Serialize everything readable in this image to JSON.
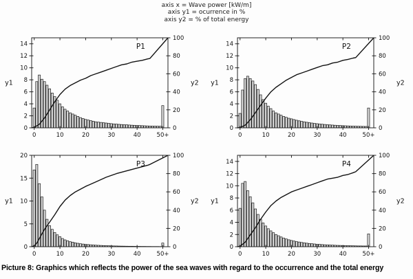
{
  "header": {
    "line1": "axis x = Wave power [kW/m]",
    "line2": "axis y1 = ocurrence in %",
    "line3": "axis y2 = % of total energy"
  },
  "caption": "Picture 8: Graphics which reflects the power of the sea waves with regard to the occurrence and the total energy",
  "colors": {
    "bar_fill": "#d6d6d6",
    "bar_stroke": "#1a1a1a",
    "curve": "#111111",
    "frame": "#222222",
    "text": "#111111"
  },
  "chart_data": [
    {
      "type": "bar+line",
      "title": "P1",
      "xlabel": "Wave power [kW/m]",
      "y1_axis_label": "y1",
      "y2_axis_label": "y2",
      "y1_meaning": "ocurrence in %",
      "y2_meaning": "% of total energy",
      "x_ticks": [
        "0",
        "10",
        "20",
        "30",
        "40",
        "50+"
      ],
      "x_tick_values": [
        0,
        10,
        20,
        30,
        40,
        50
      ],
      "y1_ticks": [
        0,
        2,
        4,
        6,
        8,
        10,
        12,
        14
      ],
      "y1_max": 15,
      "y2_ticks": [
        0,
        20,
        40,
        60,
        80,
        100
      ],
      "y2_max": 100,
      "bars": [
        3.3,
        7.7,
        8.8,
        8.1,
        7.7,
        7.1,
        6.5,
        5.8,
        5.2,
        4.6,
        4.0,
        3.5,
        3.1,
        2.8,
        2.5,
        2.3,
        2.1,
        1.9,
        1.7,
        1.55,
        1.4,
        1.3,
        1.2,
        1.1,
        1.0,
        0.95,
        0.9,
        0.85,
        0.8,
        0.75,
        0.7,
        0.65,
        0.62,
        0.58,
        0.55,
        0.52,
        0.5,
        0.47,
        0.44,
        0.42,
        0.4,
        0.38,
        0.36,
        0.34,
        0.32,
        0.3,
        0.29,
        0.28,
        0.27,
        0.26,
        3.7
      ],
      "curve": [
        [
          -1,
          0
        ],
        [
          0,
          0.5
        ],
        [
          2,
          4
        ],
        [
          4,
          11
        ],
        [
          6,
          20
        ],
        [
          8,
          29
        ],
        [
          10,
          37
        ],
        [
          12,
          43
        ],
        [
          14,
          47
        ],
        [
          16,
          50
        ],
        [
          18,
          53
        ],
        [
          20,
          55
        ],
        [
          22,
          58
        ],
        [
          24,
          60
        ],
        [
          26,
          62
        ],
        [
          28,
          64
        ],
        [
          30,
          66
        ],
        [
          32,
          68
        ],
        [
          34,
          70
        ],
        [
          36,
          71
        ],
        [
          38,
          73
        ],
        [
          40,
          74
        ],
        [
          42,
          75
        ],
        [
          44,
          76.5
        ],
        [
          45,
          77
        ],
        [
          52,
          100
        ]
      ]
    },
    {
      "type": "bar+line",
      "title": "P2",
      "xlabel": "Wave power [kW/m]",
      "y1_axis_label": "y1",
      "y2_axis_label": "y2",
      "y1_meaning": "ocurrence in %",
      "y2_meaning": "% of total energy",
      "x_ticks": [
        "0",
        "10",
        "20",
        "30",
        "40",
        "50+"
      ],
      "x_tick_values": [
        0,
        10,
        20,
        30,
        40,
        50
      ],
      "y1_ticks": [
        0,
        2,
        4,
        6,
        8,
        10,
        12,
        14
      ],
      "y1_max": 15,
      "y2_ticks": [
        0,
        20,
        40,
        60,
        80,
        100
      ],
      "y2_max": 100,
      "bars": [
        2.4,
        6.3,
        8.2,
        8.6,
        8.2,
        7.8,
        7.2,
        6.4,
        5.5,
        4.7,
        4.1,
        3.6,
        3.2,
        2.8,
        2.5,
        2.3,
        2.1,
        1.9,
        1.75,
        1.6,
        1.5,
        1.38,
        1.27,
        1.17,
        1.08,
        1.0,
        0.93,
        0.86,
        0.8,
        0.74,
        0.69,
        0.64,
        0.6,
        0.56,
        0.52,
        0.49,
        0.46,
        0.43,
        0.4,
        0.38,
        0.36,
        0.34,
        0.32,
        0.3,
        0.29,
        0.27,
        0.26,
        0.25,
        0.24,
        0.23,
        3.3
      ],
      "curve": [
        [
          -1,
          0
        ],
        [
          0,
          0.3
        ],
        [
          2,
          3
        ],
        [
          4,
          9
        ],
        [
          6,
          17
        ],
        [
          8,
          25
        ],
        [
          10,
          33
        ],
        [
          12,
          40
        ],
        [
          14,
          45
        ],
        [
          16,
          49
        ],
        [
          18,
          53
        ],
        [
          20,
          56
        ],
        [
          22,
          59
        ],
        [
          24,
          61
        ],
        [
          26,
          63
        ],
        [
          28,
          65
        ],
        [
          30,
          67
        ],
        [
          32,
          69
        ],
        [
          34,
          70
        ],
        [
          36,
          72
        ],
        [
          38,
          73
        ],
        [
          40,
          75
        ],
        [
          42,
          76
        ],
        [
          44,
          77.5
        ],
        [
          45,
          78
        ],
        [
          52,
          100
        ]
      ]
    },
    {
      "type": "bar+line",
      "title": "P3",
      "xlabel": "Wave power [kW/m]",
      "y1_axis_label": "y1",
      "y2_axis_label": "y2",
      "y1_meaning": "ocurrence in %",
      "y2_meaning": "% of total energy",
      "x_ticks": [
        "0",
        "10",
        "20",
        "30",
        "40",
        "50+"
      ],
      "x_tick_values": [
        0,
        10,
        20,
        30,
        40,
        50
      ],
      "y1_ticks": [
        0,
        5,
        10,
        15,
        20
      ],
      "y1_max": 20,
      "y2_ticks": [
        0,
        20,
        40,
        60,
        80,
        100
      ],
      "y2_max": 100,
      "bars": [
        16.8,
        18.0,
        13.8,
        10.9,
        8.0,
        6.0,
        4.6,
        3.8,
        3.1,
        2.6,
        2.2,
        1.8,
        1.5,
        1.3,
        1.1,
        1.0,
        0.85,
        0.75,
        0.65,
        0.58,
        0.52,
        0.47,
        0.42,
        0.38,
        0.34,
        0.31,
        0.28,
        0.25,
        0.23,
        0.21,
        0.19,
        0.17,
        0.16,
        0.14,
        0.13,
        0.12,
        0.11,
        0.1,
        0.1,
        0.09,
        0.08,
        0.08,
        0.07,
        0.07,
        0.06,
        0.06,
        0.05,
        0.05,
        0.05,
        0.04,
        0.8
      ],
      "curve": [
        [
          -1,
          0
        ],
        [
          0,
          1
        ],
        [
          1,
          4
        ],
        [
          2,
          9
        ],
        [
          3,
          14
        ],
        [
          4,
          19
        ],
        [
          5,
          23
        ],
        [
          6,
          27
        ],
        [
          8,
          35
        ],
        [
          10,
          44
        ],
        [
          12,
          51
        ],
        [
          14,
          56
        ],
        [
          16,
          60
        ],
        [
          18,
          63
        ],
        [
          20,
          66
        ],
        [
          24,
          71
        ],
        [
          28,
          76
        ],
        [
          32,
          80
        ],
        [
          36,
          83
        ],
        [
          40,
          86
        ],
        [
          44,
          89
        ],
        [
          45,
          90
        ],
        [
          52,
          100
        ]
      ]
    },
    {
      "type": "bar+line",
      "title": "P4",
      "xlabel": "Wave power [kW/m]",
      "y1_axis_label": "y1",
      "y2_axis_label": "y2",
      "y1_meaning": "ocurrence in %",
      "y2_meaning": "% of total energy",
      "x_ticks": [
        "0",
        "10",
        "20",
        "30",
        "40",
        "50+"
      ],
      "x_tick_values": [
        0,
        10,
        20,
        30,
        40,
        50
      ],
      "y1_ticks": [
        0,
        2,
        4,
        6,
        8,
        10,
        12,
        14
      ],
      "y1_max": 15,
      "y2_ticks": [
        0,
        20,
        40,
        60,
        80,
        100
      ],
      "y2_max": 100,
      "bars": [
        6.3,
        10.4,
        10.7,
        9.2,
        8.2,
        7.2,
        6.2,
        5.3,
        4.5,
        3.9,
        3.4,
        2.95,
        2.6,
        2.3,
        2.0,
        1.8,
        1.6,
        1.42,
        1.27,
        1.14,
        1.03,
        0.93,
        0.84,
        0.77,
        0.7,
        0.64,
        0.58,
        0.53,
        0.49,
        0.45,
        0.41,
        0.38,
        0.35,
        0.32,
        0.3,
        0.28,
        0.26,
        0.24,
        0.22,
        0.21,
        0.19,
        0.18,
        0.17,
        0.16,
        0.15,
        0.14,
        0.13,
        0.13,
        0.12,
        0.12,
        2.1
      ],
      "curve": [
        [
          -1,
          0
        ],
        [
          0,
          0.5
        ],
        [
          2,
          5
        ],
        [
          4,
          13
        ],
        [
          6,
          21
        ],
        [
          8,
          30
        ],
        [
          10,
          38
        ],
        [
          12,
          45
        ],
        [
          14,
          50
        ],
        [
          16,
          54
        ],
        [
          18,
          57
        ],
        [
          20,
          60
        ],
        [
          22,
          62
        ],
        [
          24,
          64
        ],
        [
          26,
          66
        ],
        [
          28,
          68
        ],
        [
          30,
          70
        ],
        [
          32,
          72
        ],
        [
          34,
          74
        ],
        [
          36,
          75
        ],
        [
          38,
          76
        ],
        [
          40,
          78
        ],
        [
          42,
          79
        ],
        [
          44,
          81
        ],
        [
          45,
          82
        ],
        [
          52,
          100
        ]
      ]
    }
  ]
}
